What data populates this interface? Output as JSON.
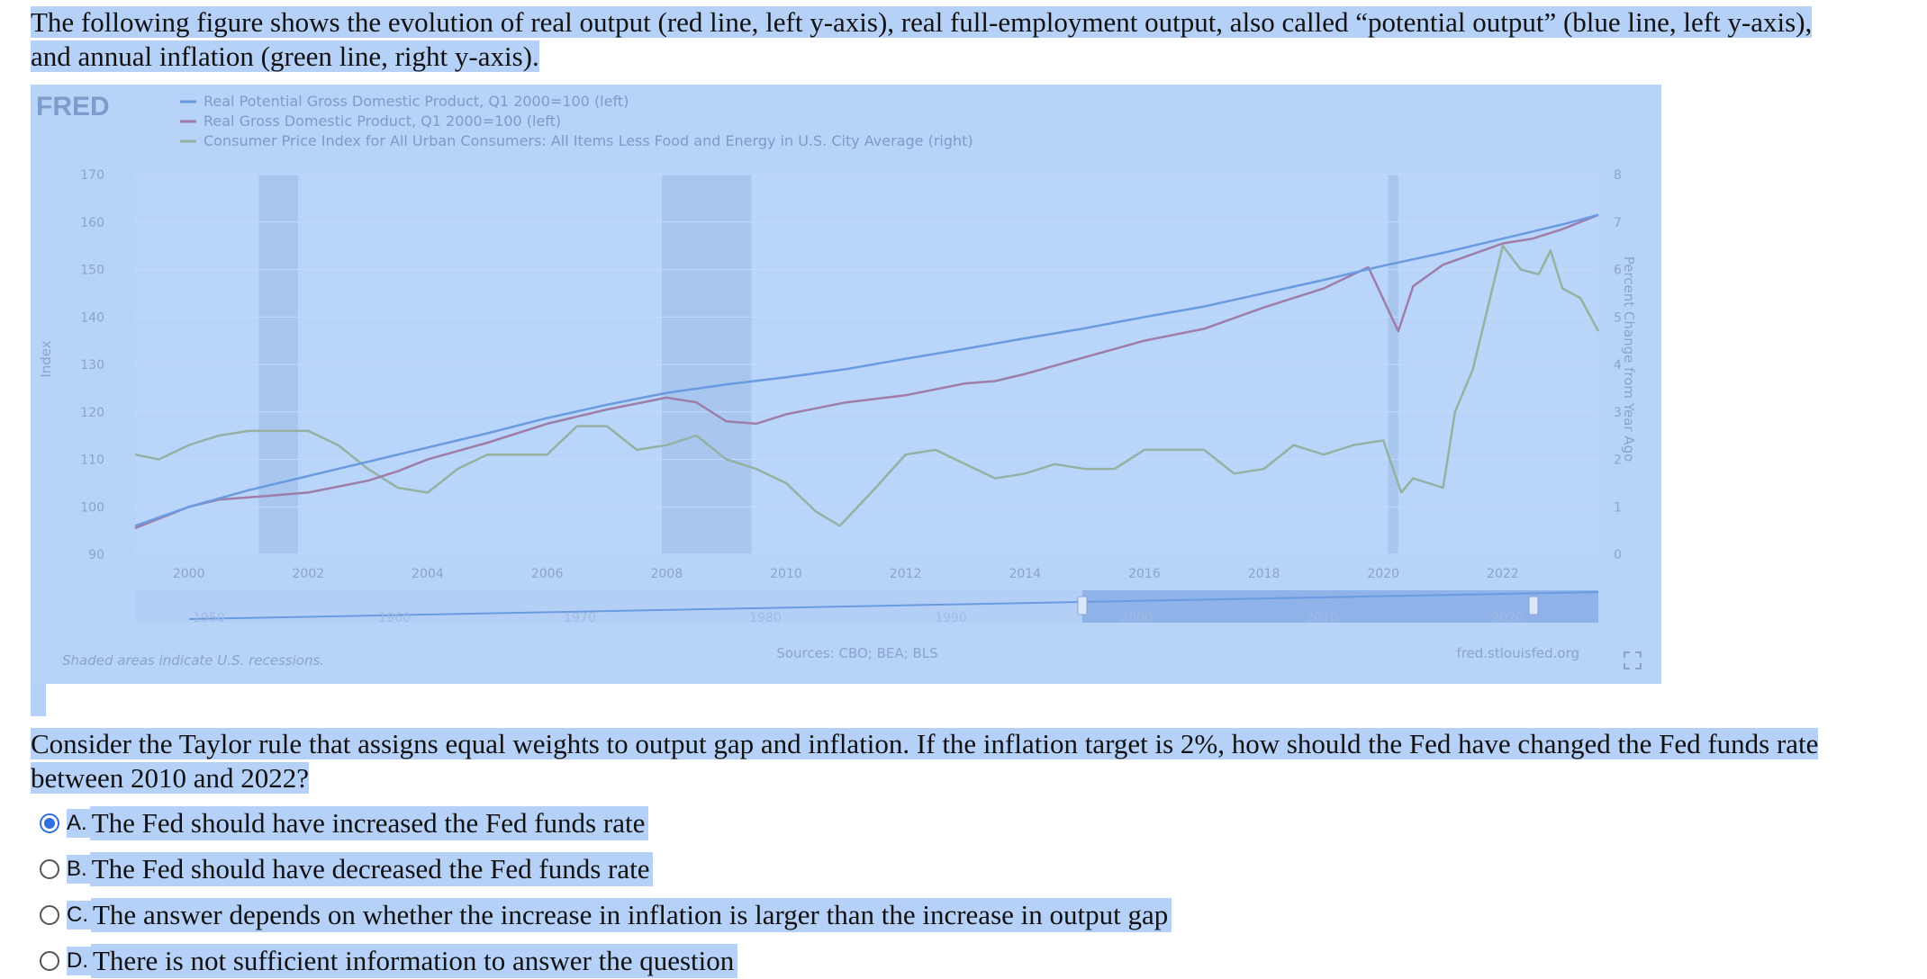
{
  "intro_text": "The following figure shows the evolution of real output (red line, left y-axis), real full-employment output, also called “potential output” (blue line, left y-axis), and annual inflation (green line, right y-axis).",
  "figure": {
    "logo": "FRED",
    "legend": [
      "Real Potential Gross Domestic Product, Q1 2000=100 (left)",
      "Real Gross Domestic Product, Q1 2000=100 (left)",
      "Consumer Price Index for All Urban Consumers: All Items Less Food and Energy in U.S. City Average (right)"
    ],
    "left_axis_label": "Index",
    "right_axis_label": "Percent Change from Year Ago",
    "footer_note": "Shaded areas indicate U.S. recessions.",
    "sources": "Sources: CBO; BEA; BLS",
    "site": "fred.stlouisfed.org",
    "navigator_labels": [
      "1950",
      "1960",
      "1970",
      "1980",
      "1990",
      "2000",
      "2010",
      "2020"
    ],
    "colors": {
      "potential": "#6a9ae0",
      "real_gdp": "#9e7ea8",
      "cpi": "#95b1a2",
      "recession": "#a9c7ee"
    }
  },
  "chart_data": {
    "type": "line",
    "x_axis": {
      "ticks": [
        "2000",
        "2002",
        "2004",
        "2006",
        "2008",
        "2010",
        "2012",
        "2014",
        "2016",
        "2018",
        "2020",
        "2022"
      ],
      "range": [
        1999.1,
        2023.6
      ]
    },
    "left_axis": {
      "label": "Index",
      "ticks": [
        90,
        100,
        110,
        120,
        130,
        140,
        150,
        160,
        170
      ],
      "range": [
        90,
        170
      ]
    },
    "right_axis": {
      "label": "Percent Change from Year Ago",
      "ticks": [
        0,
        1,
        2,
        3,
        4,
        5,
        6,
        7,
        8
      ],
      "range": [
        0,
        8
      ]
    },
    "recessions": [
      [
        2001.17,
        2001.83
      ],
      [
        2007.92,
        2009.42
      ],
      [
        2020.08,
        2020.25
      ]
    ],
    "series": [
      {
        "name": "Real Potential Gross Domestic Product, Q1 2000=100 (left)",
        "axis": "left",
        "x": [
          1999.1,
          2000,
          2001,
          2002,
          2003,
          2004,
          2005,
          2006,
          2007,
          2008,
          2009,
          2010,
          2011,
          2012,
          2013,
          2014,
          2015,
          2016,
          2017,
          2018,
          2019,
          2020,
          2021,
          2022,
          2023,
          2023.6
        ],
        "y": [
          96,
          100,
          103.5,
          106.5,
          109.5,
          112.5,
          115.5,
          118.7,
          121.5,
          124,
          125.8,
          127.3,
          129,
          131.2,
          133.3,
          135.5,
          137.6,
          140,
          142.2,
          145,
          147.8,
          150.8,
          153.5,
          156.5,
          159.5,
          161.5
        ]
      },
      {
        "name": "Real Gross Domestic Product, Q1 2000=100 (left)",
        "axis": "left",
        "x": [
          1999.1,
          2000,
          2000.5,
          2001,
          2001.5,
          2002,
          2003,
          2003.5,
          2004,
          2005,
          2006,
          2007,
          2008,
          2008.5,
          2009,
          2009.5,
          2010,
          2011,
          2012,
          2013,
          2013.5,
          2014,
          2015,
          2016,
          2017,
          2018,
          2019,
          2019.75,
          2020.25,
          2020.5,
          2021,
          2022,
          2022.5,
          2023,
          2023.6
        ],
        "y": [
          95.5,
          100,
          101.5,
          102,
          102.5,
          103,
          105.5,
          107.5,
          110,
          113.5,
          117.5,
          120.5,
          123,
          122,
          118,
          117.5,
          119.5,
          122,
          123.5,
          126,
          126.5,
          128,
          131.5,
          135,
          137.5,
          142,
          146,
          150.5,
          137,
          146.5,
          151,
          155.5,
          156.5,
          158.5,
          161.5
        ]
      },
      {
        "name": "Consumer Price Index for All Urban Consumers: All Items Less Food and Energy in U.S. City Average (right)",
        "axis": "right",
        "x": [
          1999.1,
          1999.5,
          2000,
          2000.5,
          2001,
          2001.5,
          2002,
          2002.5,
          2003,
          2003.5,
          2004,
          2004.5,
          2005,
          2005.5,
          2006,
          2006.5,
          2007,
          2007.5,
          2008,
          2008.5,
          2009,
          2009.5,
          2010,
          2010.5,
          2010.9,
          2011.5,
          2012,
          2012.5,
          2013,
          2013.5,
          2014,
          2014.5,
          2015,
          2015.5,
          2016,
          2016.5,
          2017,
          2017.5,
          2018,
          2018.5,
          2019,
          2019.5,
          2020,
          2020.3,
          2020.5,
          2021,
          2021.2,
          2021.5,
          2022,
          2022.3,
          2022.6,
          2022.8,
          2023,
          2023.3,
          2023.6
        ],
        "y": [
          2.1,
          2,
          2.3,
          2.5,
          2.6,
          2.6,
          2.6,
          2.3,
          1.8,
          1.4,
          1.3,
          1.8,
          2.1,
          2.1,
          2.1,
          2.7,
          2.7,
          2.2,
          2.3,
          2.5,
          2,
          1.8,
          1.5,
          0.9,
          0.6,
          1.4,
          2.1,
          2.2,
          1.9,
          1.6,
          1.7,
          1.9,
          1.8,
          1.8,
          2.2,
          2.2,
          2.2,
          1.7,
          1.8,
          2.3,
          2.1,
          2.3,
          2.4,
          1.3,
          1.6,
          1.4,
          3,
          3.9,
          6.5,
          6,
          5.9,
          6.4,
          5.6,
          5.4,
          4.7
        ]
      }
    ]
  },
  "question_text": "Consider the Taylor rule that assigns equal weights to output gap and inflation.  If the inflation target is 2%, how should the Fed have changed the Fed funds rate between 2010 and 2022?",
  "options": [
    {
      "letter": "A.",
      "text": "The Fed should have increased the Fed funds rate",
      "selected": true
    },
    {
      "letter": "B.",
      "text": "The Fed should have decreased the Fed funds rate",
      "selected": false
    },
    {
      "letter": "C.",
      "text": "The answer depends on whether the increase in inflation is larger than the increase in output gap",
      "selected": false
    },
    {
      "letter": "D.",
      "text": "There is not sufficient information to answer the question",
      "selected": false
    }
  ]
}
